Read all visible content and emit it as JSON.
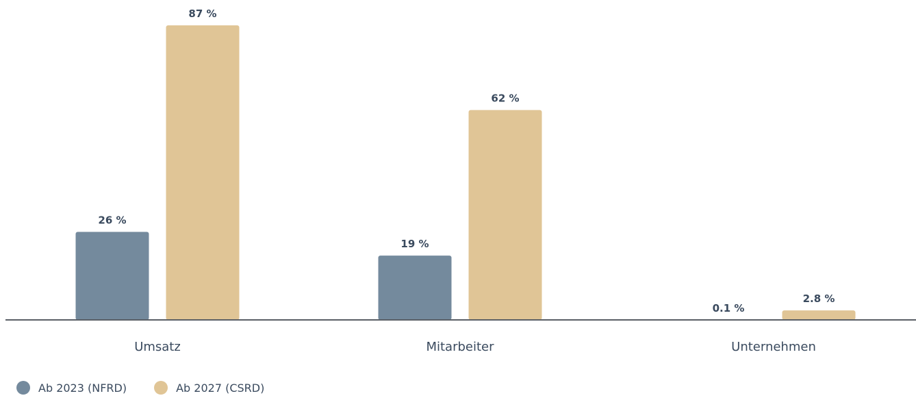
{
  "colors": {
    "nfrd": "#748a9d",
    "csrd": "#e0c596",
    "axis": "#5a5f66",
    "text": "#3a4a5e"
  },
  "legend": {
    "items": [
      {
        "label": "Ab 2023 (NFRD)",
        "color": "#748a9d"
      },
      {
        "label": "Ab 2027 (CSRD)",
        "color": "#e0c596"
      }
    ]
  },
  "chart_data": {
    "type": "bar",
    "title": "",
    "xlabel": "",
    "ylabel": "",
    "ylim": [
      0,
      87
    ],
    "grid": false,
    "legend_position": "bottom-left",
    "categories": [
      "Umsatz",
      "Mitarbeiter",
      "Unternehmen"
    ],
    "series": [
      {
        "name": "Ab 2023 (NFRD)",
        "color": "#748a9d",
        "values": [
          26,
          19,
          0.1
        ],
        "labels": [
          "26 %",
          "19 %",
          "0.1 %"
        ]
      },
      {
        "name": "Ab 2027 (CSRD)",
        "color": "#e0c596",
        "values": [
          87,
          62,
          2.8
        ],
        "labels": [
          "87 %",
          "62 %",
          "2.8 %"
        ]
      }
    ]
  }
}
